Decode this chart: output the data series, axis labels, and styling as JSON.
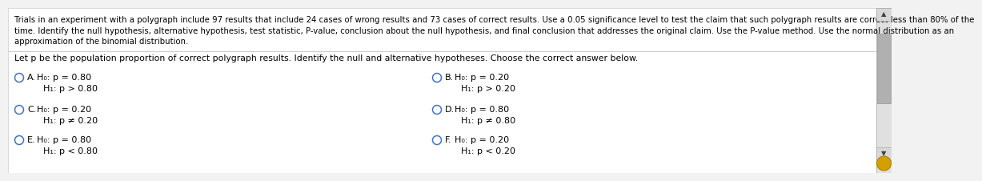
{
  "bg_color": "#f2f2f2",
  "panel_color": "#ffffff",
  "border_color": "#cccccc",
  "header_lines": [
    "Trials in an experiment with a polygraph include 97 results that include 24 cases of wrong results and 73 cases of correct results. Use a 0.05 significance level to test the claim that such polygraph results are correct less than 80% of the",
    "time. Identify the null hypothesis, alternative hypothesis, test statistic, P-value, conclusion about the null hypothesis, and final conclusion that addresses the original claim. Use the P-value method. Use the normal distribution as an",
    "approximation of the binomial distribution."
  ],
  "divider_text": "Let p be the population proportion of correct polygraph results. Identify the null and alternative hypotheses. Choose the correct answer below.",
  "options": [
    {
      "label": "A.",
      "h0": "H₀: p = 0.80",
      "h1": "H₁: p > 0.80",
      "col": 0,
      "row": 0
    },
    {
      "label": "B.",
      "h0": "H₀: p = 0.20",
      "h1": "H₁: p > 0.20",
      "col": 1,
      "row": 0
    },
    {
      "label": "C.",
      "h0": "H₀: p = 0.20",
      "h1": "H₁: p ≠ 0.20",
      "col": 0,
      "row": 1
    },
    {
      "label": "D.",
      "h0": "H₀: p = 0.80",
      "h1": "H₁: p ≠ 0.80",
      "col": 1,
      "row": 1
    },
    {
      "label": "E.",
      "h0": "H₀: p = 0.80",
      "h1": "H₁: p < 0.80",
      "col": 0,
      "row": 2
    },
    {
      "label": "F.",
      "h0": "H₀: p = 0.20",
      "h1": "H₁: p < 0.20",
      "col": 1,
      "row": 2
    }
  ],
  "circle_color": "#4472c4",
  "text_color": "#000000",
  "gray_text": "#555555",
  "header_fontsize": 7.3,
  "subheader_fontsize": 7.8,
  "option_fontsize": 8.0,
  "scrollbar_bg": "#e0e0e0",
  "scrollbar_thumb": "#b0b0b0",
  "scrollbar_border": "#aaaaaa",
  "scroll_up_arrow": "▲",
  "scroll_down_arrow": "▼",
  "arrow_color": "#404040",
  "gold_color": "#d4a000",
  "gold_border": "#b08000"
}
